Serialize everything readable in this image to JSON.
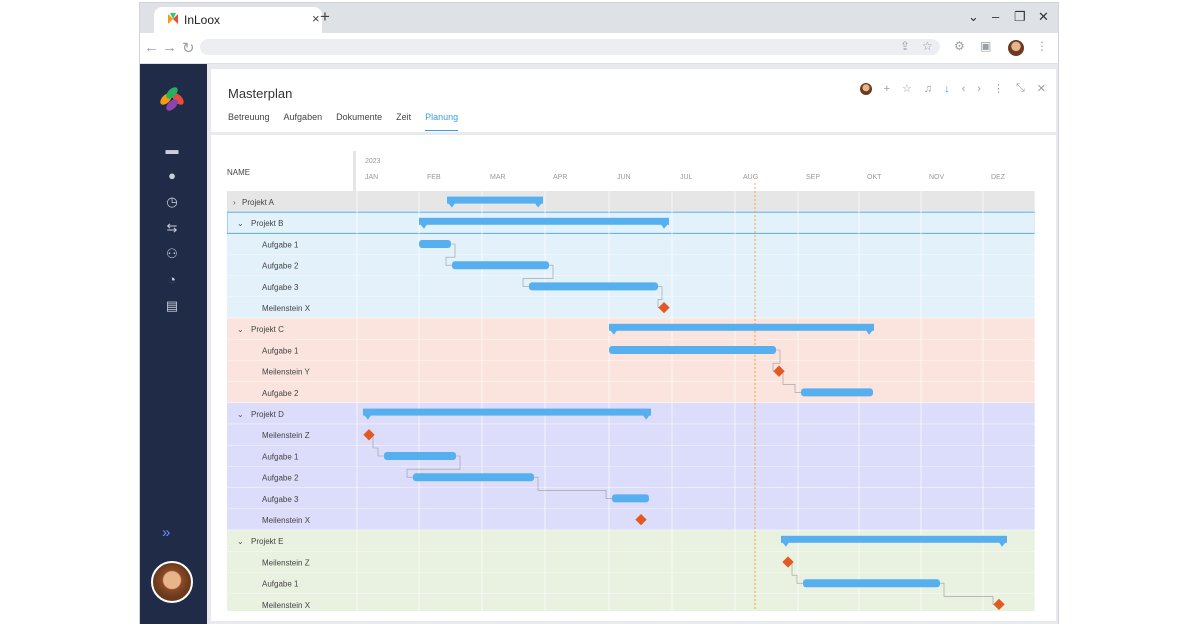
{
  "browser": {
    "tab_title": "InLoox",
    "tab_close": "×",
    "new_tab": "+",
    "win_minimize_icon": "chevron-down-icon",
    "colors": {
      "accent": "#3a9de0",
      "sidebar": "#1f2b47"
    }
  },
  "panel": {
    "title": "Masterplan",
    "tabs": [
      "Betreuung",
      "Aufgaben",
      "Dokumente",
      "Zeit",
      "Planung"
    ],
    "active_tab": "Planung"
  },
  "gantt": {
    "name_header": "NAME",
    "year": "2023",
    "months": [
      "JAN",
      "FEB",
      "MAR",
      "APR",
      "JUN",
      "JUL",
      "AUG",
      "SEP",
      "OKT",
      "NOV",
      "DEZ"
    ],
    "colors": {
      "bar": "#56b0ef",
      "milestone": "#e25a22",
      "today_line": "#f0a532",
      "group_b": "#e3f1fb",
      "group_c": "#fbe4dd",
      "group_d": "#dcdcfb",
      "group_e": "#e9f1e0",
      "group_a": "#e6e6e6"
    },
    "rows": [
      {
        "label": "Projekt A",
        "level": 0,
        "group": "a",
        "expanded": false,
        "type": "summary"
      },
      {
        "label": "Projekt B",
        "level": 0,
        "group": "b",
        "expanded": true,
        "type": "summary"
      },
      {
        "label": "Aufgabe 1",
        "level": 1,
        "group": "b",
        "type": "task"
      },
      {
        "label": "Aufgabe 2",
        "level": 1,
        "group": "b",
        "type": "task"
      },
      {
        "label": "Aufgabe 3",
        "level": 1,
        "group": "b",
        "type": "task"
      },
      {
        "label": "Meilenstein X",
        "level": 1,
        "group": "b",
        "type": "milestone"
      },
      {
        "label": "Projekt C",
        "level": 0,
        "group": "c",
        "expanded": true,
        "type": "summary"
      },
      {
        "label": "Aufgabe 1",
        "level": 1,
        "group": "c",
        "type": "task"
      },
      {
        "label": "Meilenstein Y",
        "level": 1,
        "group": "c",
        "type": "milestone"
      },
      {
        "label": "Aufgabe 2",
        "level": 1,
        "group": "c",
        "type": "task"
      },
      {
        "label": "Projekt D",
        "level": 0,
        "group": "d",
        "expanded": true,
        "type": "summary"
      },
      {
        "label": "Meilenstein Z",
        "level": 1,
        "group": "d",
        "type": "milestone"
      },
      {
        "label": "Aufgabe 1",
        "level": 1,
        "group": "d",
        "type": "task"
      },
      {
        "label": "Aufgabe 2",
        "level": 1,
        "group": "d",
        "type": "task"
      },
      {
        "label": "Aufgabe 3",
        "level": 1,
        "group": "d",
        "type": "task"
      },
      {
        "label": "Meilenstein X",
        "level": 1,
        "group": "d",
        "type": "milestone"
      },
      {
        "label": "Projekt E",
        "level": 0,
        "group": "e",
        "expanded": true,
        "type": "summary"
      },
      {
        "label": "Meilenstein Z",
        "level": 1,
        "group": "e",
        "type": "milestone"
      },
      {
        "label": "Aufgabe 1",
        "level": 1,
        "group": "e",
        "type": "task"
      },
      {
        "label": "Meilenstein X",
        "level": 1,
        "group": "e",
        "type": "milestone"
      }
    ]
  }
}
